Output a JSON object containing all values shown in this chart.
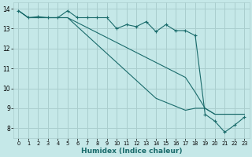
{
  "xlabel": "Humidex (Indice chaleur)",
  "bg_color": "#c5e8e8",
  "grid_color": "#aacece",
  "line_color": "#1a6b6b",
  "xlim": [
    -0.5,
    23.5
  ],
  "ylim": [
    7.5,
    14.3
  ],
  "yticks": [
    8,
    9,
    10,
    11,
    12,
    13,
    14
  ],
  "xticks": [
    0,
    1,
    2,
    3,
    4,
    5,
    6,
    7,
    8,
    9,
    10,
    11,
    12,
    13,
    14,
    15,
    16,
    17,
    18,
    19,
    20,
    21,
    22,
    23
  ],
  "series1_x": [
    0,
    1,
    2,
    3,
    4,
    5,
    6,
    7,
    8,
    9,
    10,
    11,
    12,
    13,
    14,
    15,
    16,
    17,
    18,
    19,
    20,
    21,
    22,
    23
  ],
  "series1_y": [
    13.9,
    13.55,
    13.6,
    13.55,
    13.55,
    13.9,
    13.55,
    13.55,
    13.55,
    13.55,
    13.0,
    13.2,
    13.1,
    13.35,
    12.85,
    13.2,
    12.9,
    12.9,
    12.65,
    8.7,
    8.35,
    7.8,
    8.15,
    8.55
  ],
  "series2_x": [
    0,
    1,
    2,
    3,
    4,
    5,
    6,
    7,
    8,
    9,
    10,
    11,
    12,
    13,
    14,
    15,
    16,
    17,
    18,
    19,
    20,
    21,
    22,
    23
  ],
  "series2_y": [
    13.9,
    13.55,
    13.55,
    13.55,
    13.55,
    13.55,
    13.3,
    13.05,
    12.8,
    12.55,
    12.3,
    12.05,
    11.8,
    11.55,
    11.3,
    11.05,
    10.8,
    10.55,
    9.8,
    9.0,
    8.7,
    8.7,
    8.7,
    8.7
  ],
  "series3_x": [
    0,
    1,
    2,
    3,
    4,
    5,
    6,
    7,
    8,
    9,
    10,
    11,
    12,
    13,
    14,
    15,
    16,
    17,
    18,
    19,
    20,
    21,
    22,
    23
  ],
  "series3_y": [
    13.9,
    13.55,
    13.55,
    13.55,
    13.55,
    13.55,
    13.1,
    12.65,
    12.2,
    11.75,
    11.3,
    10.85,
    10.4,
    9.95,
    9.5,
    9.3,
    9.1,
    8.9,
    9.0,
    9.0,
    8.7,
    8.7,
    8.7,
    8.7
  ]
}
